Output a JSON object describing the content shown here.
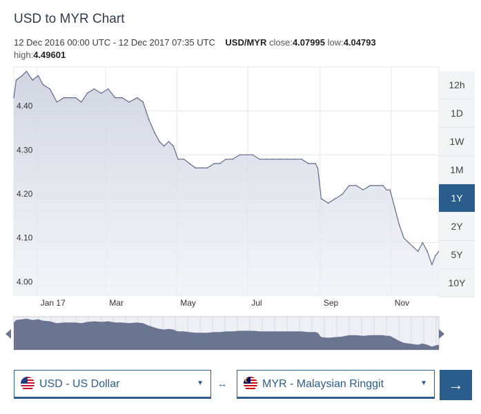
{
  "header": {
    "title": "USD to MYR Chart",
    "range": "12 Dec 2016 00:00 UTC - 12 Dec 2017 07:35 UTC",
    "pair": "USD/MYR",
    "close_label": "close:",
    "close_value": "4.07995",
    "low_label": "low:",
    "low_value": "4.04793",
    "high_label": "high:",
    "high_value": "4.49601"
  },
  "periods": [
    "12h",
    "1D",
    "1W",
    "1M",
    "1Y",
    "2Y",
    "5Y",
    "10Y"
  ],
  "active_period": "1Y",
  "colors": {
    "accent": "#2a5d8c",
    "area_fill": "#d9dce6",
    "line": "#5e6a8b",
    "navigator_fill": "#6b7592"
  },
  "icons": {
    "from_flag": "us-flag-icon",
    "to_flag": "my-flag-icon",
    "swap": "swap-arrows-icon",
    "go": "arrow-right-icon",
    "nav_left": "caret-left-icon",
    "nav_right": "caret-right-icon"
  },
  "converter": {
    "from": "USD - US Dollar",
    "to": "MYR - Malaysian Ringgit",
    "swap_symbol": "↔",
    "go_symbol": "→",
    "dropdown_symbol": "▼"
  },
  "chart_data": {
    "type": "area",
    "x_start": "2016-12-12",
    "x_end": "2017-12-12",
    "ylim": [
      3.98,
      4.5
    ],
    "yticks": [
      4.0,
      4.1,
      4.2,
      4.3,
      4.4
    ],
    "ytick_labels": [
      "4.00",
      "4.10",
      "4.20",
      "4.30",
      "4.40"
    ],
    "xtick_labels": [
      "Jan 17",
      "Mar",
      "May",
      "Jul",
      "Sep",
      "Nov"
    ],
    "xtick_dates": [
      "2017-01-01",
      "2017-03-01",
      "2017-05-01",
      "2017-07-01",
      "2017-09-01",
      "2017-11-01"
    ],
    "grid": true,
    "series": [
      {
        "x": [
          "2016-12-12",
          "2016-12-14",
          "2016-12-19",
          "2016-12-23",
          "2016-12-28",
          "2017-01-02",
          "2017-01-06",
          "2017-01-12",
          "2017-01-18",
          "2017-01-24",
          "2017-01-30",
          "2017-02-03",
          "2017-02-08",
          "2017-02-13",
          "2017-02-19",
          "2017-02-25",
          "2017-03-03",
          "2017-03-09",
          "2017-03-15",
          "2017-03-21",
          "2017-03-28",
          "2017-04-02",
          "2017-04-07",
          "2017-04-12",
          "2017-04-16",
          "2017-04-20",
          "2017-04-24",
          "2017-04-28",
          "2017-05-02",
          "2017-05-07",
          "2017-05-12",
          "2017-05-17",
          "2017-05-22",
          "2017-05-27",
          "2017-06-02",
          "2017-06-07",
          "2017-06-12",
          "2017-06-18",
          "2017-06-24",
          "2017-06-30",
          "2017-07-05",
          "2017-07-11",
          "2017-07-17",
          "2017-07-23",
          "2017-07-29",
          "2017-08-04",
          "2017-08-10",
          "2017-08-16",
          "2017-08-22",
          "2017-08-28",
          "2017-08-30",
          "2017-09-02",
          "2017-09-08",
          "2017-09-14",
          "2017-09-20",
          "2017-09-26",
          "2017-10-02",
          "2017-10-08",
          "2017-10-14",
          "2017-10-20",
          "2017-10-25",
          "2017-10-28",
          "2017-10-31",
          "2017-11-04",
          "2017-11-08",
          "2017-11-12",
          "2017-11-16",
          "2017-11-20",
          "2017-11-24",
          "2017-11-28",
          "2017-12-02",
          "2017-12-06",
          "2017-12-09",
          "2017-12-12"
        ],
        "y": [
          4.43,
          4.47,
          4.48,
          4.49,
          4.47,
          4.48,
          4.46,
          4.45,
          4.42,
          4.43,
          4.43,
          4.43,
          4.42,
          4.44,
          4.45,
          4.44,
          4.45,
          4.43,
          4.43,
          4.42,
          4.43,
          4.42,
          4.38,
          4.35,
          4.33,
          4.32,
          4.33,
          4.32,
          4.29,
          4.29,
          4.28,
          4.27,
          4.27,
          4.27,
          4.28,
          4.28,
          4.29,
          4.29,
          4.3,
          4.3,
          4.3,
          4.29,
          4.29,
          4.29,
          4.29,
          4.29,
          4.29,
          4.29,
          4.28,
          4.28,
          4.27,
          4.2,
          4.19,
          4.2,
          4.21,
          4.23,
          4.23,
          4.22,
          4.23,
          4.23,
          4.23,
          4.22,
          4.22,
          4.18,
          4.14,
          4.11,
          4.1,
          4.09,
          4.08,
          4.1,
          4.08,
          4.05,
          4.07,
          4.08
        ]
      }
    ]
  }
}
